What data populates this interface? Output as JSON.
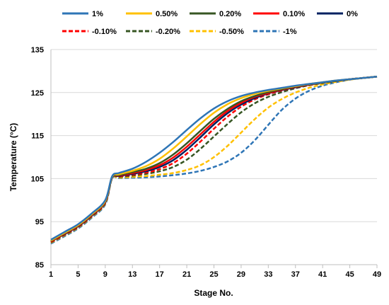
{
  "chart_data": {
    "type": "line",
    "title": "",
    "xlabel": "Stage No.",
    "ylabel": "Temperature (°C)",
    "xlim": [
      1,
      49
    ],
    "ylim": [
      85,
      135
    ],
    "xticks": [
      1,
      5,
      9,
      13,
      17,
      21,
      25,
      29,
      33,
      37,
      41,
      45,
      49
    ],
    "yticks": [
      85,
      95,
      105,
      115,
      125,
      135
    ],
    "grid": "horizontal",
    "legend_position": "top",
    "series": [
      {
        "name": "1%",
        "color": "#2E75B6",
        "dash": "solid",
        "x": [
          1,
          3,
          5,
          7,
          9,
          10,
          11,
          13,
          15,
          17,
          19,
          21,
          23,
          25,
          27,
          29,
          31,
          33,
          35,
          37,
          39,
          41,
          43,
          45,
          47,
          49
        ],
        "y": [
          90.8,
          92.6,
          94.4,
          96.9,
          100.0,
          105.5,
          106.3,
          107.3,
          108.9,
          111.0,
          113.5,
          116.3,
          119.0,
          121.3,
          123.0,
          124.2,
          125.0,
          125.6,
          126.1,
          126.6,
          127.0,
          127.4,
          127.8,
          128.1,
          128.4,
          128.7
        ]
      },
      {
        "name": "0.50%",
        "color": "#FFC000",
        "dash": "solid",
        "x": [
          1,
          3,
          5,
          7,
          9,
          10,
          11,
          13,
          15,
          17,
          19,
          21,
          23,
          25,
          27,
          29,
          31,
          33,
          35,
          37,
          39,
          41,
          43,
          45,
          47,
          49
        ],
        "y": [
          90.6,
          92.4,
          94.2,
          96.7,
          99.8,
          105.4,
          106.0,
          106.8,
          107.9,
          109.6,
          112.0,
          114.8,
          117.7,
          120.3,
          122.3,
          123.7,
          124.7,
          125.4,
          126.0,
          126.5,
          127.0,
          127.4,
          127.8,
          128.1,
          128.4,
          128.7
        ]
      },
      {
        "name": "0.20%",
        "color": "#375623",
        "dash": "solid",
        "x": [
          1,
          3,
          5,
          7,
          9,
          10,
          11,
          13,
          15,
          17,
          19,
          21,
          23,
          25,
          27,
          29,
          31,
          33,
          35,
          37,
          39,
          41,
          43,
          45,
          47,
          49
        ],
        "y": [
          90.5,
          92.3,
          94.1,
          96.6,
          99.7,
          105.3,
          105.8,
          106.5,
          107.3,
          108.6,
          110.6,
          113.2,
          116.1,
          118.9,
          121.2,
          123.0,
          124.2,
          125.1,
          125.8,
          126.4,
          126.9,
          127.3,
          127.7,
          128.1,
          128.4,
          128.7
        ]
      },
      {
        "name": "0.10%",
        "color": "#FF0000",
        "dash": "solid",
        "x": [
          1,
          3,
          5,
          7,
          9,
          10,
          11,
          13,
          15,
          17,
          19,
          21,
          23,
          25,
          27,
          29,
          31,
          33,
          35,
          37,
          39,
          41,
          43,
          45,
          47,
          49
        ],
        "y": [
          90.4,
          92.2,
          94.0,
          96.5,
          99.6,
          105.3,
          105.7,
          106.3,
          107.0,
          108.1,
          109.9,
          112.4,
          115.3,
          118.2,
          120.7,
          122.6,
          124.0,
          124.9,
          125.7,
          126.3,
          126.8,
          127.3,
          127.7,
          128.1,
          128.4,
          128.7
        ]
      },
      {
        "name": "0%",
        "color": "#002060",
        "dash": "solid",
        "x": [
          1,
          3,
          5,
          7,
          9,
          10,
          11,
          13,
          15,
          17,
          19,
          21,
          23,
          25,
          27,
          29,
          31,
          33,
          35,
          37,
          39,
          41,
          43,
          45,
          47,
          49
        ],
        "y": [
          90.4,
          92.1,
          93.9,
          96.4,
          99.5,
          105.2,
          105.6,
          106.1,
          106.7,
          107.7,
          109.3,
          111.7,
          114.6,
          117.6,
          120.2,
          122.2,
          123.7,
          124.8,
          125.6,
          126.2,
          126.8,
          127.3,
          127.7,
          128.1,
          128.4,
          128.7
        ]
      },
      {
        "name": "-0.10%",
        "color": "#FF0000",
        "dash": "dashed",
        "x": [
          1,
          3,
          5,
          7,
          9,
          10,
          11,
          13,
          15,
          17,
          19,
          21,
          23,
          25,
          27,
          29,
          31,
          33,
          35,
          37,
          39,
          41,
          43,
          45,
          47,
          49
        ],
        "y": [
          90.3,
          92.0,
          93.8,
          96.3,
          99.4,
          105.2,
          105.5,
          105.9,
          106.4,
          107.2,
          108.6,
          110.8,
          113.6,
          116.6,
          119.4,
          121.7,
          123.4,
          124.6,
          125.5,
          126.2,
          126.8,
          127.3,
          127.7,
          128.1,
          128.4,
          128.7
        ]
      },
      {
        "name": "-0.20%",
        "color": "#375623",
        "dash": "dashed",
        "x": [
          1,
          3,
          5,
          7,
          9,
          10,
          11,
          13,
          15,
          17,
          19,
          21,
          23,
          25,
          27,
          29,
          31,
          33,
          35,
          37,
          39,
          41,
          43,
          45,
          47,
          49
        ],
        "y": [
          90.2,
          91.9,
          93.7,
          96.2,
          99.3,
          105.2,
          105.4,
          105.7,
          106.1,
          106.7,
          107.7,
          109.4,
          111.9,
          114.8,
          117.7,
          120.4,
          122.5,
          124.0,
          125.1,
          126.0,
          126.7,
          127.2,
          127.7,
          128.1,
          128.4,
          128.7
        ]
      },
      {
        "name": "-0.50%",
        "color": "#FFC000",
        "dash": "dashed",
        "x": [
          1,
          3,
          5,
          7,
          9,
          10,
          11,
          13,
          15,
          17,
          19,
          21,
          23,
          25,
          27,
          29,
          31,
          33,
          35,
          37,
          39,
          41,
          43,
          45,
          47,
          49
        ],
        "y": [
          90.1,
          91.8,
          93.6,
          96.1,
          99.2,
          105.1,
          105.2,
          105.4,
          105.6,
          105.9,
          106.3,
          107.0,
          108.1,
          110.0,
          112.6,
          115.7,
          118.8,
          121.5,
          123.5,
          125.0,
          126.1,
          126.9,
          127.5,
          128.0,
          128.4,
          128.7
        ]
      },
      {
        "name": "-1%",
        "color": "#2E75B6",
        "dash": "dashed",
        "x": [
          1,
          3,
          5,
          7,
          9,
          10,
          11,
          13,
          15,
          17,
          19,
          21,
          23,
          25,
          27,
          29,
          31,
          33,
          35,
          37,
          39,
          41,
          43,
          45,
          47,
          49
        ],
        "y": [
          89.9,
          91.6,
          93.4,
          95.9,
          99.0,
          105.0,
          105.1,
          105.2,
          105.3,
          105.5,
          105.8,
          106.2,
          106.8,
          107.7,
          109.0,
          111.0,
          113.9,
          117.5,
          121.0,
          123.6,
          125.4,
          126.6,
          127.4,
          128.0,
          128.4,
          128.7
        ]
      }
    ]
  }
}
